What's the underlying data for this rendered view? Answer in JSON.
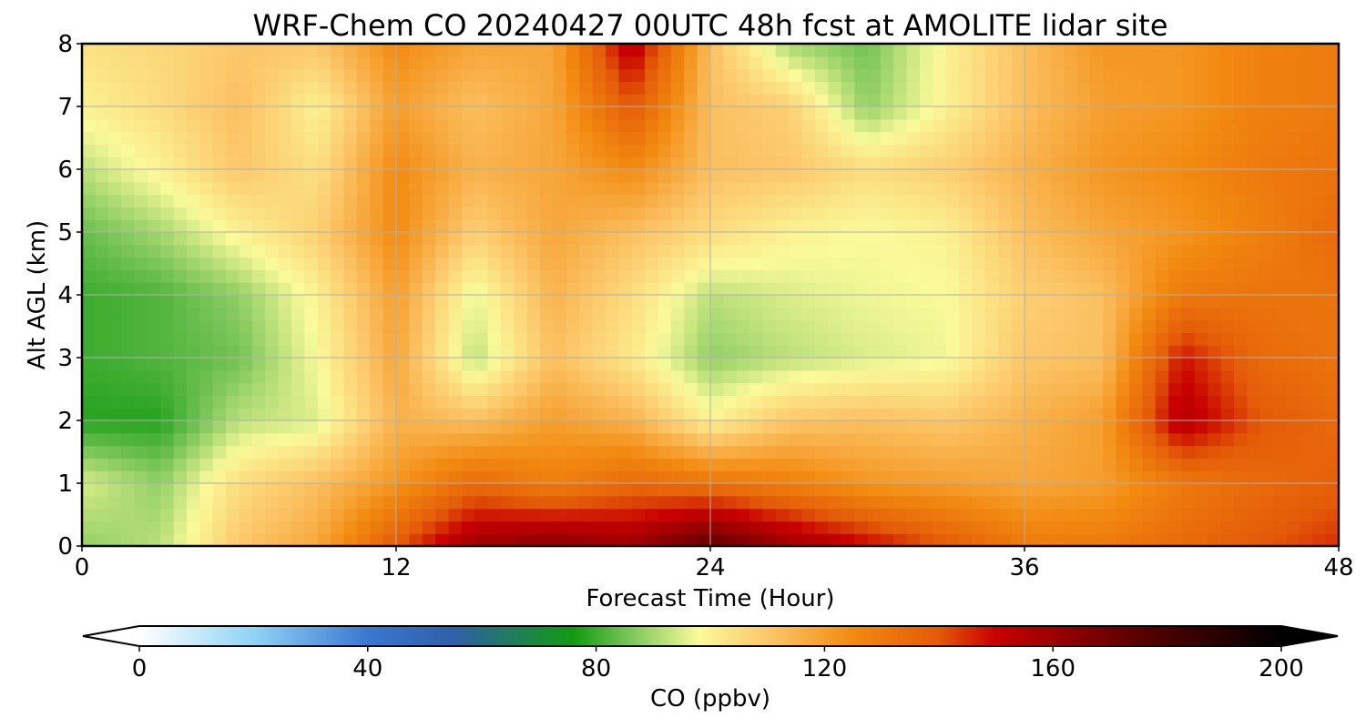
{
  "chart_data": {
    "type": "heatmap",
    "title": "WRF-Chem CO  20240427 00UTC 48h fcst at AMOLITE lidar site",
    "xlabel": "Forecast Time (Hour)",
    "ylabel": "Alt AGL (km)",
    "xlim": [
      0,
      48
    ],
    "ylim": [
      0,
      8
    ],
    "x_ticks": [
      "0",
      "12",
      "24",
      "36",
      "48"
    ],
    "y_ticks": [
      "0",
      "1",
      "2",
      "3",
      "4",
      "5",
      "6",
      "7",
      "8"
    ],
    "grid": true,
    "colorbar": {
      "label": "CO  (ppbv)",
      "range": [
        0,
        200
      ],
      "extend": "both",
      "ticks": [
        "0",
        "40",
        "80",
        "120",
        "160",
        "200"
      ],
      "stops": [
        {
          "value": 0,
          "color": "#ffffff"
        },
        {
          "value": 20,
          "color": "#8fd3f5"
        },
        {
          "value": 40,
          "color": "#3a78d0"
        },
        {
          "value": 55,
          "color": "#2f5fa8"
        },
        {
          "value": 70,
          "color": "#1a8a3a"
        },
        {
          "value": 76,
          "color": "#129a12"
        },
        {
          "value": 86,
          "color": "#7cc65a"
        },
        {
          "value": 98,
          "color": "#fafa9a"
        },
        {
          "value": 110,
          "color": "#fcc76a"
        },
        {
          "value": 125,
          "color": "#f28a10"
        },
        {
          "value": 140,
          "color": "#e45a08"
        },
        {
          "value": 150,
          "color": "#c80000"
        },
        {
          "value": 175,
          "color": "#5a0000"
        },
        {
          "value": 200,
          "color": "#000000"
        }
      ]
    },
    "x": [
      0,
      3,
      6,
      9,
      12,
      15,
      18,
      21,
      24,
      27,
      30,
      33,
      36,
      39,
      42,
      45,
      48
    ],
    "y": [
      0,
      1,
      2,
      3,
      4,
      5,
      6,
      7,
      8
    ],
    "z": [
      [
        88,
        92,
        110,
        118,
        140,
        160,
        165,
        160,
        175,
        160,
        150,
        140,
        130,
        130,
        135,
        140,
        145
      ],
      [
        95,
        88,
        105,
        112,
        122,
        135,
        128,
        135,
        132,
        128,
        122,
        120,
        118,
        120,
        130,
        135,
        138
      ],
      [
        78,
        78,
        92,
        95,
        115,
        112,
        120,
        115,
        100,
        110,
        112,
        110,
        115,
        120,
        155,
        140,
        135
      ],
      [
        80,
        82,
        85,
        98,
        118,
        92,
        112,
        102,
        88,
        92,
        95,
        97,
        110,
        112,
        148,
        135,
        132
      ],
      [
        80,
        82,
        88,
        100,
        120,
        96,
        115,
        105,
        92,
        95,
        97,
        98,
        108,
        112,
        130,
        132,
        132
      ],
      [
        84,
        90,
        100,
        108,
        125,
        108,
        118,
        112,
        105,
        100,
        98,
        100,
        112,
        118,
        122,
        128,
        135
      ],
      [
        92,
        100,
        110,
        104,
        125,
        115,
        118,
        125,
        112,
        110,
        105,
        108,
        115,
        122,
        125,
        130,
        132
      ],
      [
        100,
        105,
        112,
        100,
        120,
        112,
        118,
        140,
        112,
        108,
        88,
        100,
        112,
        120,
        122,
        128,
        130
      ],
      [
        104,
        106,
        110,
        110,
        125,
        118,
        118,
        155,
        112,
        90,
        85,
        100,
        112,
        122,
        122,
        128,
        130
      ]
    ]
  }
}
